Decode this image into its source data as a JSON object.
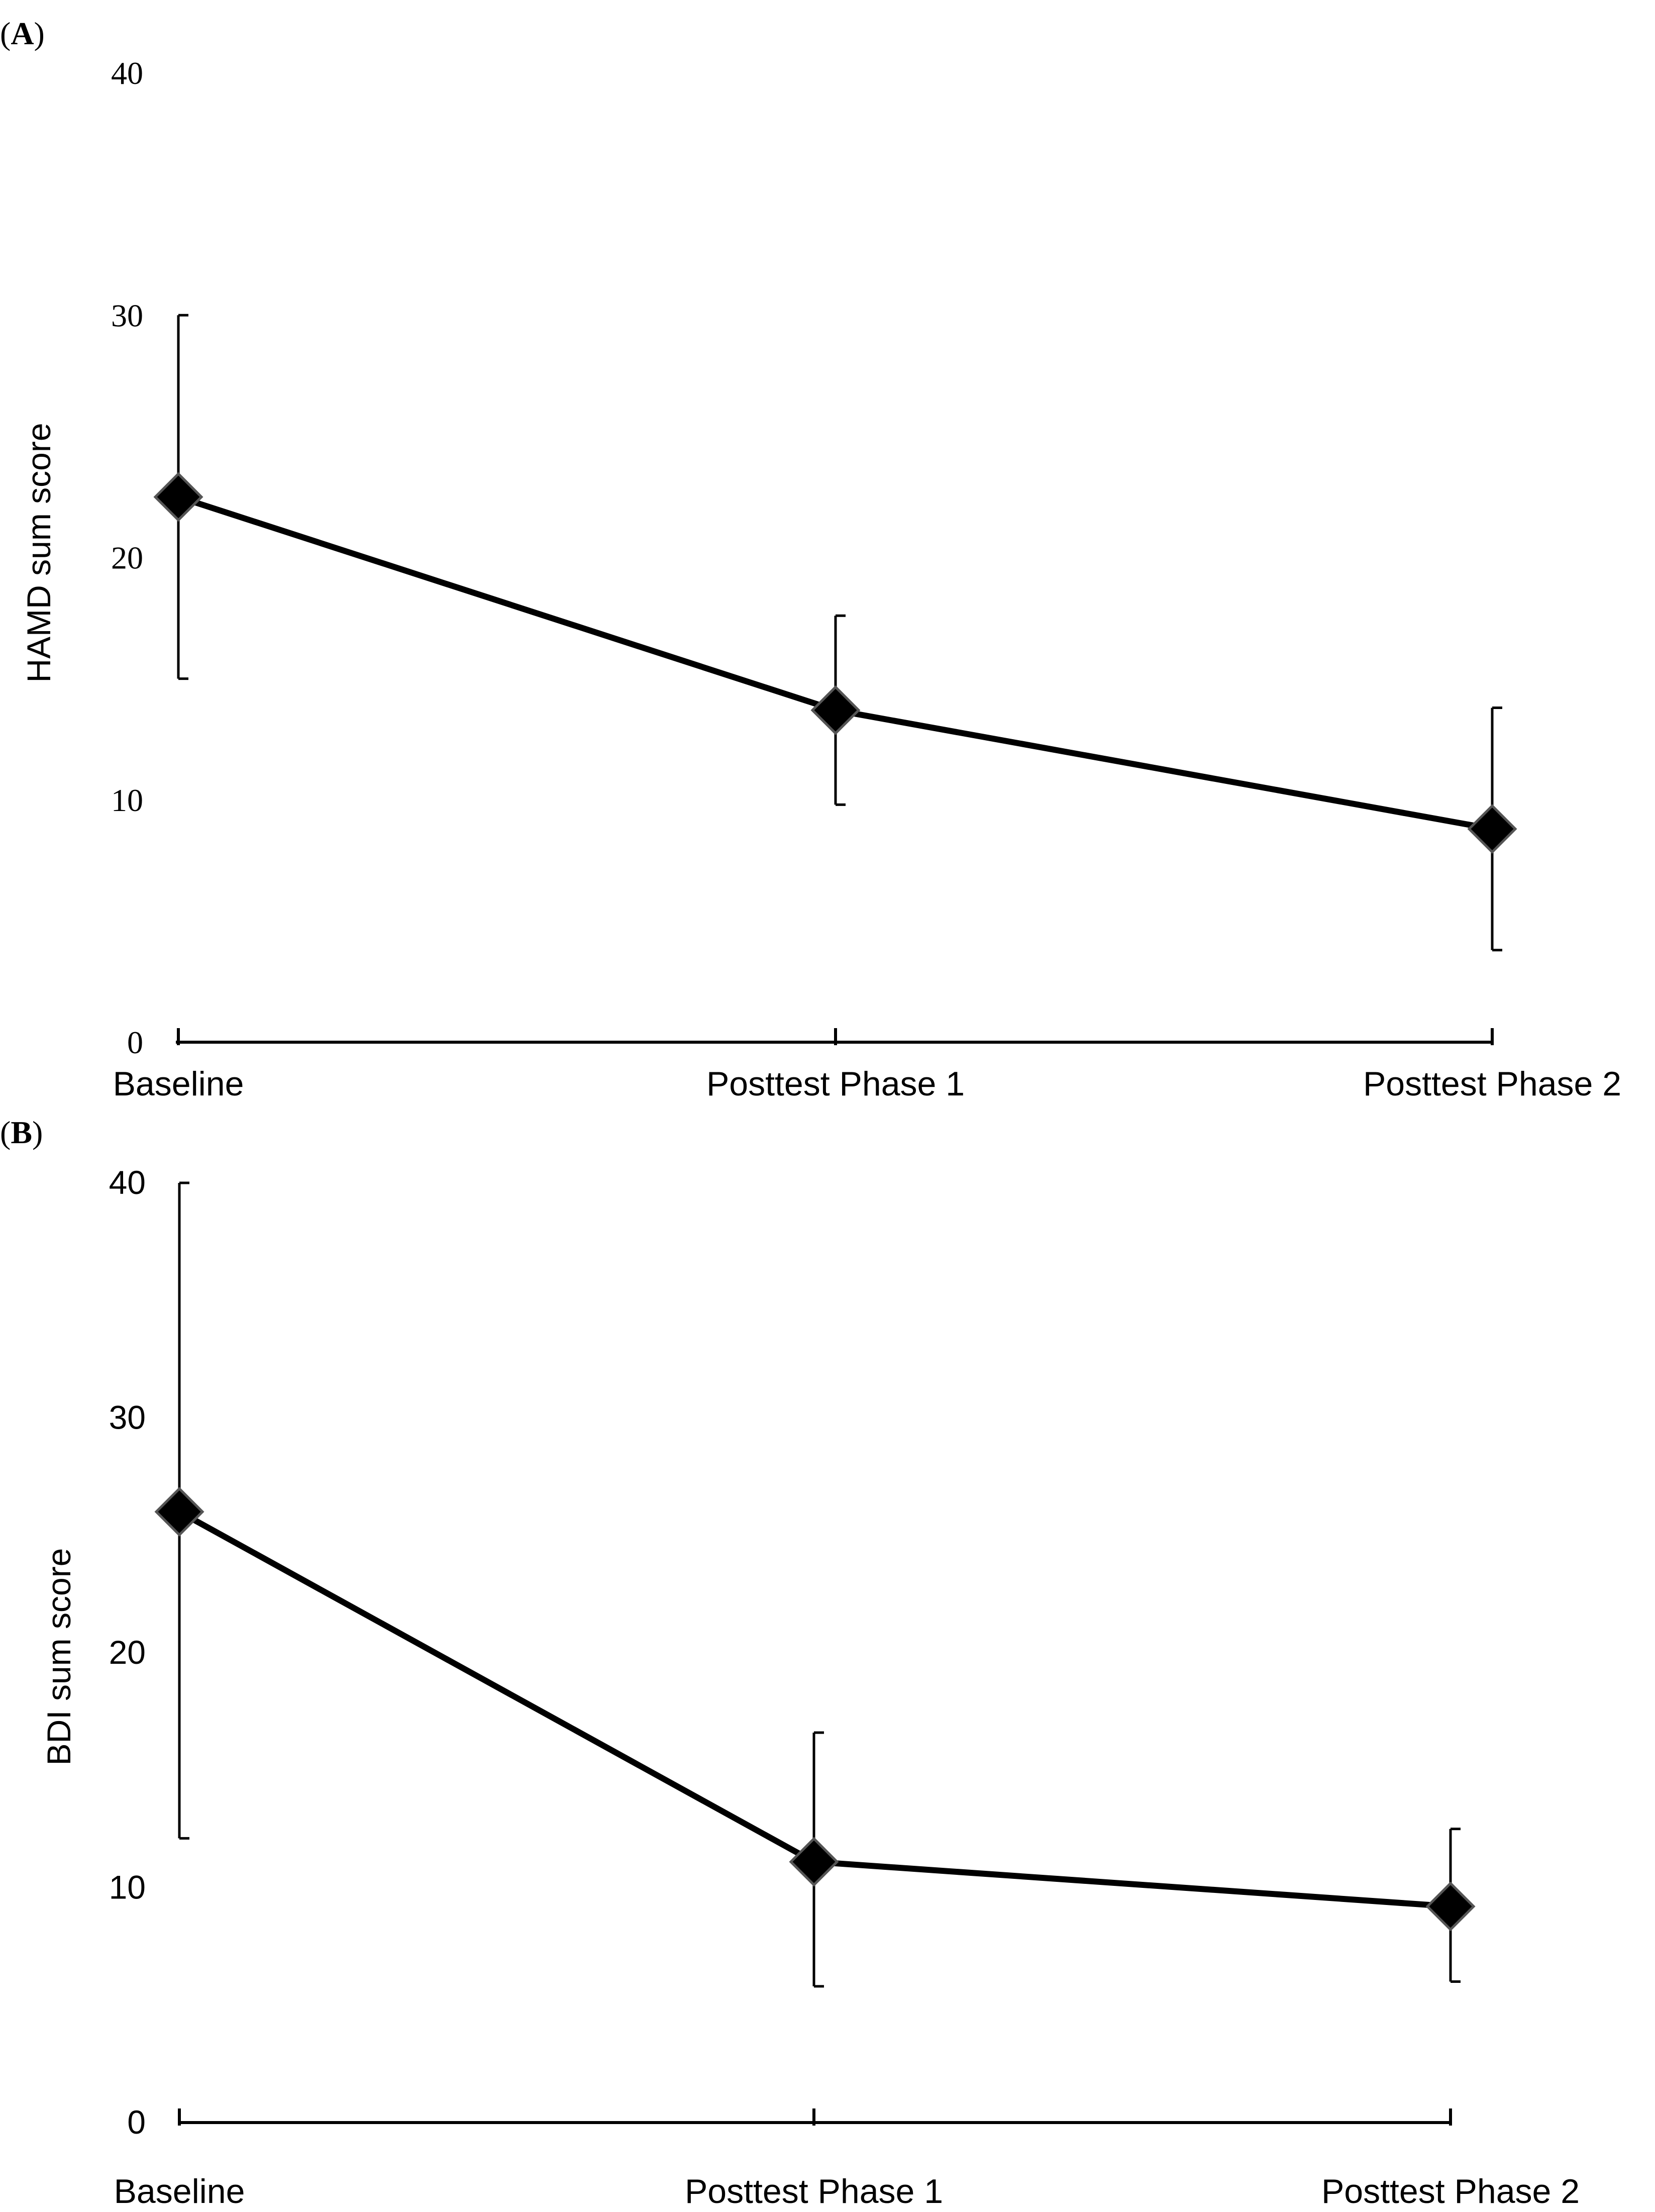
{
  "chart_data": [
    {
      "type": "line",
      "panel_label": "(A)",
      "title": "",
      "xlabel": "",
      "ylabel": "HAMD sum score",
      "ylim": [
        0,
        40
      ],
      "yticks": [
        "0",
        "10",
        "20",
        "30",
        "40"
      ],
      "categories": [
        "Baseline",
        "Posttest Phase 1",
        "Posttest Phase 2"
      ],
      "series": [
        {
          "name": "HAMD",
          "values": [
            22.5,
            13.7,
            8.8
          ],
          "error_low": [
            15.0,
            9.8,
            3.8
          ],
          "error_high": [
            30.0,
            17.6,
            13.8
          ]
        }
      ],
      "grid": false,
      "legend": "none"
    },
    {
      "type": "line",
      "panel_label": "(B)",
      "title": "",
      "xlabel": "",
      "ylabel": "BDI sum score",
      "ylim": [
        0,
        40
      ],
      "yticks": [
        "0",
        "10",
        "20",
        "30",
        "40"
      ],
      "categories": [
        "Baseline",
        "Posttest Phase 1",
        "Posttest Phase 2"
      ],
      "series": [
        {
          "name": "BDI",
          "values": [
            26.0,
            11.1,
            9.2
          ],
          "error_low": [
            12.1,
            5.8,
            6.0
          ],
          "error_high": [
            40.0,
            16.6,
            12.5
          ]
        }
      ],
      "grid": false,
      "legend": "none"
    }
  ]
}
